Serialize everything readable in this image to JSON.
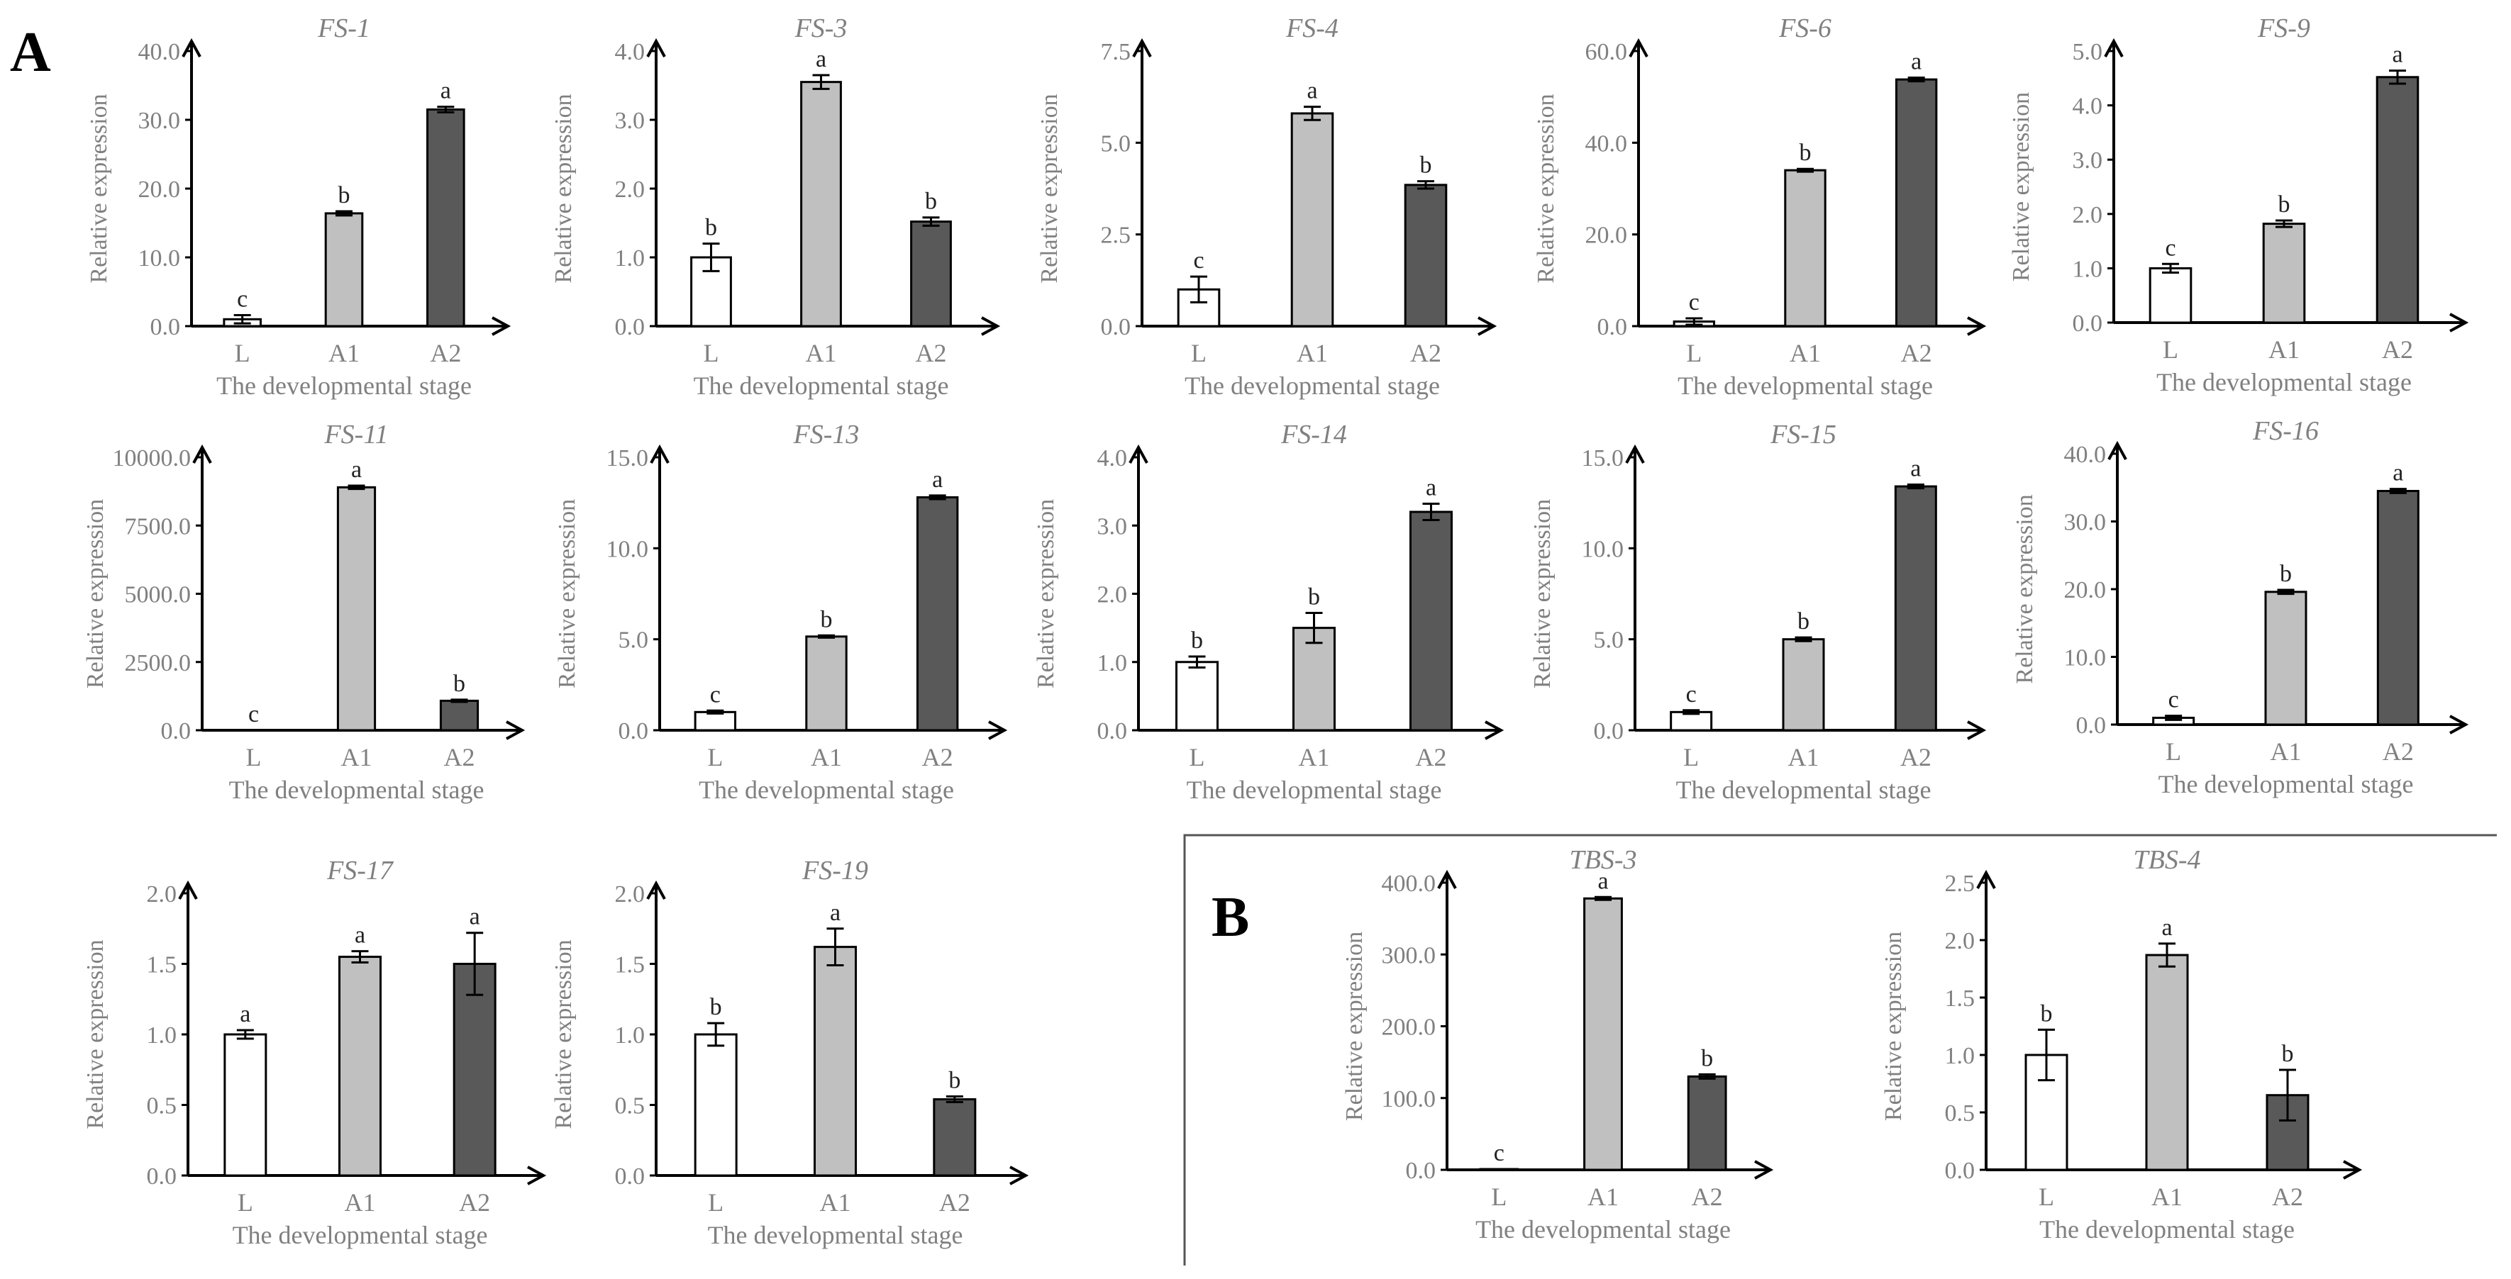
{
  "panel_labels": {
    "A": "A",
    "B": "B"
  },
  "colors": {
    "L": "#ffffff",
    "A1": "#c0c0c0",
    "A2": "#595959",
    "axis": "#000000",
    "text": "#808080"
  },
  "chart_data": [
    {
      "type": "bar",
      "title": "FS-1",
      "categories": [
        "L",
        "A1",
        "A2"
      ],
      "values": [
        1.0,
        16.4,
        31.5
      ],
      "errors": [
        0.6,
        0.3,
        0.4
      ],
      "significance": [
        "c",
        "b",
        "a"
      ],
      "ylim": [
        0,
        40
      ],
      "yticks": [
        "0.0",
        "10.0",
        "20.0",
        "30.0",
        "40.0"
      ],
      "xlabel": "The developmental stage",
      "ylabel": "Relative expression"
    },
    {
      "type": "bar",
      "title": "FS-3",
      "categories": [
        "L",
        "A1",
        "A2"
      ],
      "values": [
        1.0,
        3.55,
        1.52
      ],
      "errors": [
        0.2,
        0.1,
        0.06
      ],
      "significance": [
        "b",
        "a",
        "b"
      ],
      "ylim": [
        0,
        4
      ],
      "yticks": [
        "0.0",
        "1.0",
        "2.0",
        "3.0",
        "4.0"
      ],
      "xlabel": "The developmental stage",
      "ylabel": "Relative expression"
    },
    {
      "type": "bar",
      "title": "FS-4",
      "categories": [
        "L",
        "A1",
        "A2"
      ],
      "values": [
        1.0,
        5.8,
        3.85
      ],
      "errors": [
        0.35,
        0.18,
        0.1
      ],
      "significance": [
        "c",
        "a",
        "b"
      ],
      "ylim": [
        0,
        7.5
      ],
      "yticks": [
        "0.0",
        "2.5",
        "5.0",
        "7.5"
      ],
      "xlabel": "The developmental stage",
      "ylabel": "Relative expression"
    },
    {
      "type": "bar",
      "title": "FS-6",
      "categories": [
        "L",
        "A1",
        "A2"
      ],
      "values": [
        1.0,
        34.0,
        53.8
      ],
      "errors": [
        0.7,
        0.3,
        0.4
      ],
      "significance": [
        "c",
        "b",
        "a"
      ],
      "ylim": [
        0,
        60
      ],
      "yticks": [
        "0.0",
        "20.0",
        "40.0",
        "60.0"
      ],
      "xlabel": "The developmental stage",
      "ylabel": "Relative expression"
    },
    {
      "type": "bar",
      "title": "FS-9",
      "categories": [
        "L",
        "A1",
        "A2"
      ],
      "values": [
        1.0,
        1.82,
        4.52
      ],
      "errors": [
        0.08,
        0.06,
        0.12
      ],
      "significance": [
        "c",
        "b",
        "a"
      ],
      "ylim": [
        0,
        5
      ],
      "yticks": [
        "0.0",
        "1.0",
        "2.0",
        "3.0",
        "4.0",
        "5.0"
      ],
      "xlabel": "The developmental stage",
      "ylabel": "Relative expression"
    },
    {
      "type": "bar",
      "title": "FS-11",
      "categories": [
        "L",
        "A1",
        "A2"
      ],
      "values": [
        1.0,
        8900,
        1080
      ],
      "errors": [
        0,
        60,
        40
      ],
      "significance": [
        "c",
        "a",
        "b"
      ],
      "ylim": [
        0,
        10000
      ],
      "yticks": [
        "0.0",
        "2500.0",
        "5000.0",
        "7500.0",
        "10000.0"
      ],
      "xlabel": "The developmental stage",
      "ylabel": "Relative expression"
    },
    {
      "type": "bar",
      "title": "FS-13",
      "categories": [
        "L",
        "A1",
        "A2"
      ],
      "values": [
        1.0,
        5.15,
        12.8
      ],
      "errors": [
        0.08,
        0.06,
        0.1
      ],
      "significance": [
        "c",
        "b",
        "a"
      ],
      "ylim": [
        0,
        15
      ],
      "yticks": [
        "0.0",
        "5.0",
        "10.0",
        "15.0"
      ],
      "xlabel": "The developmental stage",
      "ylabel": "Relative expression"
    },
    {
      "type": "bar",
      "title": "FS-14",
      "categories": [
        "L",
        "A1",
        "A2"
      ],
      "values": [
        1.0,
        1.5,
        3.2
      ],
      "errors": [
        0.08,
        0.22,
        0.12
      ],
      "significance": [
        "b",
        "b",
        "a"
      ],
      "ylim": [
        0,
        4
      ],
      "yticks": [
        "0.0",
        "1.0",
        "2.0",
        "3.0",
        "4.0"
      ],
      "xlabel": "The developmental stage",
      "ylabel": "Relative expression"
    },
    {
      "type": "bar",
      "title": "FS-15",
      "categories": [
        "L",
        "A1",
        "A2"
      ],
      "values": [
        1.0,
        5.0,
        13.4
      ],
      "errors": [
        0.1,
        0.1,
        0.1
      ],
      "significance": [
        "c",
        "b",
        "a"
      ],
      "ylim": [
        0,
        15
      ],
      "yticks": [
        "0.0",
        "5.0",
        "10.0",
        "15.0"
      ],
      "xlabel": "The developmental stage",
      "ylabel": "Relative expression"
    },
    {
      "type": "bar",
      "title": "FS-16",
      "categories": [
        "L",
        "A1",
        "A2"
      ],
      "values": [
        1.0,
        19.6,
        34.5
      ],
      "errors": [
        0.3,
        0.3,
        0.3
      ],
      "significance": [
        "c",
        "b",
        "a"
      ],
      "ylim": [
        0,
        40
      ],
      "yticks": [
        "0.0",
        "10.0",
        "20.0",
        "30.0",
        "40.0"
      ],
      "xlabel": "The developmental stage",
      "ylabel": "Relative expression"
    },
    {
      "type": "bar",
      "title": "FS-17",
      "categories": [
        "L",
        "A1",
        "A2"
      ],
      "values": [
        1.0,
        1.55,
        1.5
      ],
      "errors": [
        0.03,
        0.04,
        0.22
      ],
      "significance": [
        "a",
        "a",
        "a"
      ],
      "ylim": [
        0,
        2
      ],
      "yticks": [
        "0.0",
        "0.5",
        "1.0",
        "1.5",
        "2.0"
      ],
      "xlabel": "The developmental stage",
      "ylabel": "Relative expression"
    },
    {
      "type": "bar",
      "title": "FS-19",
      "categories": [
        "L",
        "A1",
        "A2"
      ],
      "values": [
        1.0,
        1.62,
        0.54
      ],
      "errors": [
        0.08,
        0.13,
        0.02
      ],
      "significance": [
        "b",
        "a",
        "b"
      ],
      "ylim": [
        0,
        2
      ],
      "yticks": [
        "0.0",
        "0.5",
        "1.0",
        "1.5",
        "2.0"
      ],
      "xlabel": "The developmental stage",
      "ylabel": "Relative expression"
    },
    {
      "type": "bar",
      "title": "TBS-3",
      "categories": [
        "L",
        "A1",
        "A2"
      ],
      "values": [
        1.0,
        378,
        130
      ],
      "errors": [
        0,
        2,
        3
      ],
      "significance": [
        "c",
        "a",
        "b"
      ],
      "ylim": [
        0,
        400
      ],
      "yticks": [
        "0.0",
        "100.0",
        "200.0",
        "300.0",
        "400.0"
      ],
      "xlabel": "The developmental stage",
      "ylabel": "Relative expression"
    },
    {
      "type": "bar",
      "title": "TBS-4",
      "categories": [
        "L",
        "A1",
        "A2"
      ],
      "values": [
        1.0,
        1.87,
        0.65
      ],
      "errors": [
        0.22,
        0.1,
        0.22
      ],
      "significance": [
        "b",
        "a",
        "b"
      ],
      "ylim": [
        0,
        2.5
      ],
      "yticks": [
        "0.0",
        "0.5",
        "1.0",
        "1.5",
        "2.0",
        "2.5"
      ],
      "xlabel": "The developmental stage",
      "ylabel": "Relative expression"
    }
  ]
}
